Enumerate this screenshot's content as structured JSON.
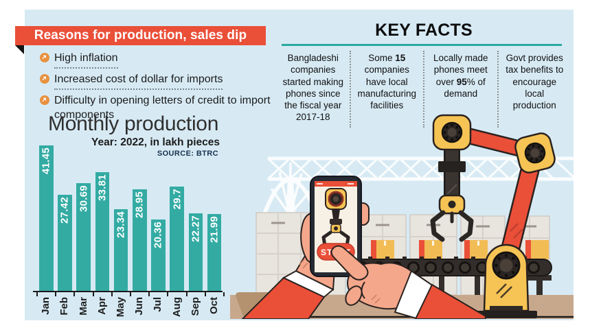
{
  "page": {
    "background": "#ffffff",
    "panel_bg": "#d7eaf4"
  },
  "reasons": {
    "title": "Reasons for production, sales dip",
    "banner_color": "#ea4f38",
    "bullet_icon": "arrow-up-right-icon",
    "bullet_color": "#e8913f",
    "items": [
      "High inflation",
      "Increased cost of dollar for imports",
      "Difficulty in opening letters of credit to import components"
    ]
  },
  "chart_data": {
    "type": "bar",
    "title": "Monthly production",
    "subtitle": "Year: 2022, in lakh pieces",
    "source": "SOURCE: BTRC",
    "categories": [
      "Jan",
      "Feb",
      "Mar",
      "Apr",
      "May",
      "Jun",
      "Jul",
      "Aug",
      "Sep",
      "Oct"
    ],
    "values": [
      41.45,
      27.42,
      30.69,
      33.81,
      23.34,
      28.95,
      20.36,
      29.7,
      22.27,
      21.99
    ],
    "xlabel": "",
    "ylabel": "",
    "ylim": [
      0,
      41.45
    ],
    "grid": false,
    "legend": "none",
    "bar_color": "#33aba3",
    "value_label_color": "#ffffff",
    "axis_color": "#1a1a1a"
  },
  "key_facts": {
    "title": "KEY FACTS",
    "underline_color": "#2aa9a0",
    "facts": [
      {
        "pre": "Bangladeshi companies started making phones since the fiscal year 2017-18",
        "bold": "",
        "post": ""
      },
      {
        "pre": "Some ",
        "bold": "15",
        "post": " companies have local manufacturing facilities"
      },
      {
        "pre": "Locally made phones meet over ",
        "bold": "95",
        "post": "% of demand"
      },
      {
        "pre": "Govt provides tax benefits to encourage local production",
        "bold": "",
        "post": ""
      }
    ]
  },
  "illustration": {
    "start_button": "START",
    "accent_red": "#ea4f38",
    "accent_yellow": "#f6c454",
    "dark": "#2a2523",
    "skin": "#f4a78a",
    "table": "#c8a88c"
  }
}
